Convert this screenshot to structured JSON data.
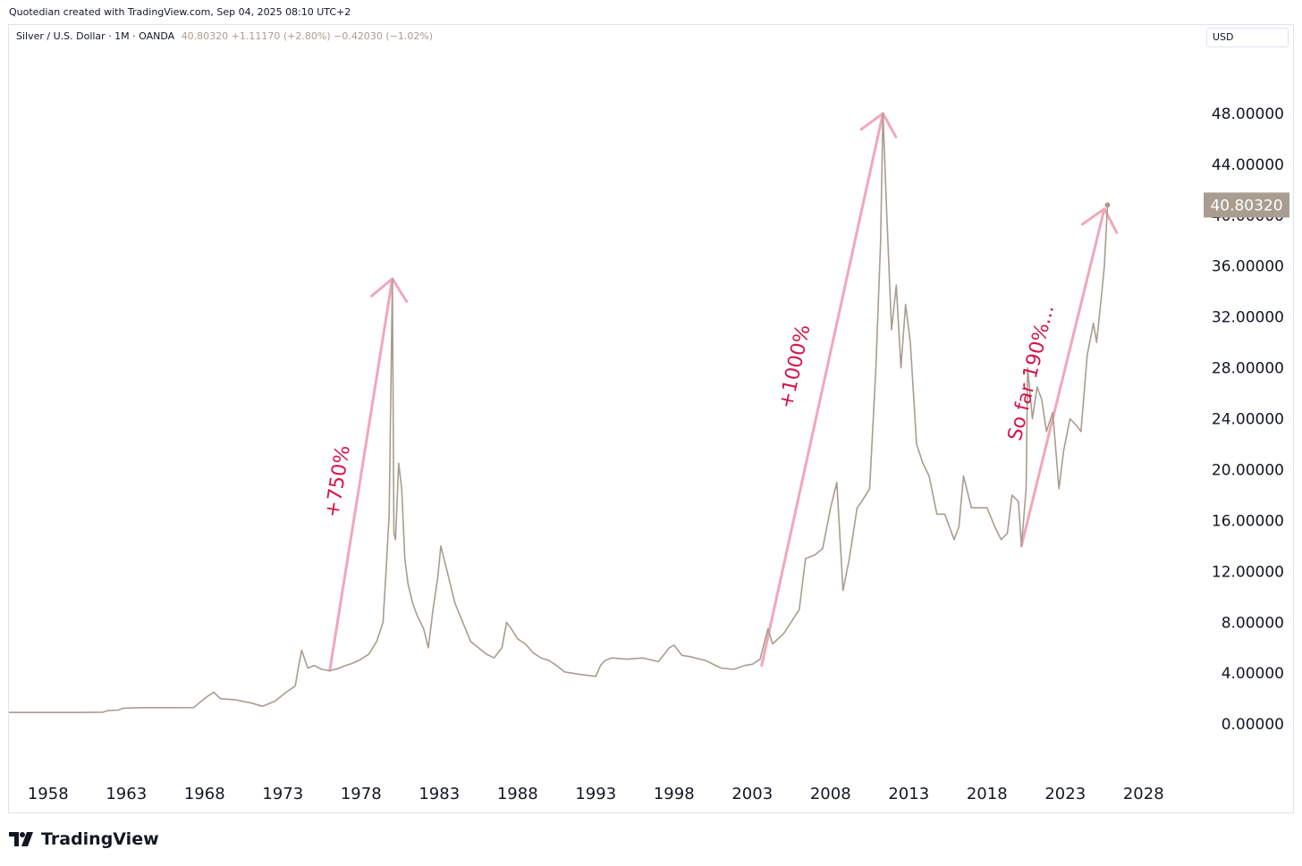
{
  "caption": "Quotedian created with TradingView.com, Sep 04, 2025 08:10 UTC+2",
  "legend": {
    "symbol": "Silver / U.S. Dollar · 1M · OANDA",
    "values": "40.80320  +1.11170 (+2.80%)  −0.42030 (−1.02%)"
  },
  "currency_button": "USD",
  "brand": "TradingView",
  "colors": {
    "line": "#a89d90",
    "arrows": "#f1a7ba",
    "annotation": "#d6154b",
    "price_label_bg": "#a89d90"
  },
  "chart_data": {
    "type": "line",
    "xlim": [
      1955.5,
      2031.5
    ],
    "ylim": [
      -3.5,
      52
    ],
    "x_ticks": [
      "1958",
      "1963",
      "1968",
      "1973",
      "1978",
      "1983",
      "1988",
      "1993",
      "1998",
      "2003",
      "2008",
      "2013",
      "2018",
      "2023",
      "2028"
    ],
    "y_ticks": [
      "48.00000",
      "44.00000",
      "40.00000",
      "36.00000",
      "32.00000",
      "28.00000",
      "24.00000",
      "20.00000",
      "16.00000",
      "12.00000",
      "8.00000",
      "4.00000",
      "0.00000"
    ],
    "last_price_label": "40.80320",
    "last_point": [
      2025.7,
      40.8
    ],
    "series": [
      {
        "points": [
          [
            1955.5,
            0.91
          ],
          [
            1960.0,
            0.91
          ],
          [
            1961.5,
            0.93
          ],
          [
            1961.8,
            1.05
          ],
          [
            1962.5,
            1.1
          ],
          [
            1962.8,
            1.25
          ],
          [
            1964.0,
            1.29
          ],
          [
            1966.0,
            1.29
          ],
          [
            1967.3,
            1.3
          ],
          [
            1967.6,
            1.6
          ],
          [
            1968.2,
            2.2
          ],
          [
            1968.6,
            2.5
          ],
          [
            1969.0,
            2.0
          ],
          [
            1970.0,
            1.9
          ],
          [
            1971.0,
            1.65
          ],
          [
            1971.7,
            1.4
          ],
          [
            1972.5,
            1.8
          ],
          [
            1973.2,
            2.5
          ],
          [
            1973.8,
            3.0
          ],
          [
            1974.0,
            4.5
          ],
          [
            1974.2,
            5.8
          ],
          [
            1974.6,
            4.4
          ],
          [
            1975.0,
            4.6
          ],
          [
            1975.5,
            4.3
          ],
          [
            1976.0,
            4.2
          ],
          [
            1976.5,
            4.35
          ],
          [
            1977.0,
            4.6
          ],
          [
            1977.5,
            4.8
          ],
          [
            1978.0,
            5.1
          ],
          [
            1978.5,
            5.5
          ],
          [
            1979.0,
            6.5
          ],
          [
            1979.4,
            8.0
          ],
          [
            1979.6,
            12.0
          ],
          [
            1979.8,
            16.5
          ],
          [
            1980.0,
            35.0
          ],
          [
            1980.1,
            15.0
          ],
          [
            1980.2,
            14.5
          ],
          [
            1980.4,
            20.5
          ],
          [
            1980.6,
            18.5
          ],
          [
            1980.8,
            13.0
          ],
          [
            1981.0,
            11.0
          ],
          [
            1981.3,
            9.5
          ],
          [
            1981.6,
            8.5
          ],
          [
            1982.0,
            7.5
          ],
          [
            1982.3,
            6.0
          ],
          [
            1982.6,
            9.0
          ],
          [
            1982.9,
            11.5
          ],
          [
            1983.1,
            14.0
          ],
          [
            1983.4,
            12.5
          ],
          [
            1983.7,
            11.0
          ],
          [
            1984.0,
            9.5
          ],
          [
            1984.5,
            8.0
          ],
          [
            1985.0,
            6.5
          ],
          [
            1985.5,
            6.0
          ],
          [
            1986.0,
            5.5
          ],
          [
            1986.5,
            5.2
          ],
          [
            1987.0,
            6.0
          ],
          [
            1987.3,
            8.0
          ],
          [
            1987.6,
            7.5
          ],
          [
            1988.0,
            6.7
          ],
          [
            1988.5,
            6.3
          ],
          [
            1989.0,
            5.6
          ],
          [
            1989.5,
            5.2
          ],
          [
            1990.0,
            5.0
          ],
          [
            1990.5,
            4.6
          ],
          [
            1991.0,
            4.1
          ],
          [
            1992.0,
            3.9
          ],
          [
            1993.0,
            3.75
          ],
          [
            1993.3,
            4.6
          ],
          [
            1993.6,
            5.0
          ],
          [
            1994.0,
            5.2
          ],
          [
            1995.0,
            5.1
          ],
          [
            1996.0,
            5.2
          ],
          [
            1997.0,
            4.9
          ],
          [
            1997.7,
            6.0
          ],
          [
            1998.0,
            6.2
          ],
          [
            1998.5,
            5.4
          ],
          [
            1999.0,
            5.3
          ],
          [
            2000.0,
            5.0
          ],
          [
            2001.0,
            4.4
          ],
          [
            2001.8,
            4.3
          ],
          [
            2002.5,
            4.6
          ],
          [
            2003.0,
            4.7
          ],
          [
            2003.5,
            5.1
          ],
          [
            2004.0,
            7.5
          ],
          [
            2004.3,
            6.3
          ],
          [
            2005.0,
            7.1
          ],
          [
            2006.0,
            9.0
          ],
          [
            2006.4,
            13.0
          ],
          [
            2007.0,
            13.3
          ],
          [
            2007.5,
            13.8
          ],
          [
            2008.0,
            17.0
          ],
          [
            2008.4,
            19.0
          ],
          [
            2008.8,
            10.5
          ],
          [
            2009.2,
            13.0
          ],
          [
            2009.7,
            17.0
          ],
          [
            2010.0,
            17.5
          ],
          [
            2010.5,
            18.5
          ],
          [
            2010.9,
            28.0
          ],
          [
            2011.2,
            38.0
          ],
          [
            2011.35,
            48.0
          ],
          [
            2011.6,
            40.0
          ],
          [
            2011.9,
            31.0
          ],
          [
            2012.2,
            34.5
          ],
          [
            2012.5,
            28.0
          ],
          [
            2012.8,
            33.0
          ],
          [
            2013.1,
            30.0
          ],
          [
            2013.5,
            22.0
          ],
          [
            2013.9,
            20.5
          ],
          [
            2014.3,
            19.5
          ],
          [
            2014.8,
            16.5
          ],
          [
            2015.3,
            16.5
          ],
          [
            2015.9,
            14.5
          ],
          [
            2016.2,
            15.5
          ],
          [
            2016.5,
            19.5
          ],
          [
            2017.0,
            17.0
          ],
          [
            2017.5,
            17.0
          ],
          [
            2018.0,
            17.0
          ],
          [
            2018.5,
            15.5
          ],
          [
            2018.9,
            14.5
          ],
          [
            2019.3,
            15.0
          ],
          [
            2019.6,
            18.0
          ],
          [
            2020.0,
            17.5
          ],
          [
            2020.2,
            14.0
          ],
          [
            2020.5,
            18.5
          ],
          [
            2020.6,
            28.0
          ],
          [
            2020.9,
            24.0
          ],
          [
            2021.2,
            26.5
          ],
          [
            2021.5,
            25.5
          ],
          [
            2021.8,
            23.0
          ],
          [
            2022.2,
            24.5
          ],
          [
            2022.6,
            18.5
          ],
          [
            2022.9,
            21.5
          ],
          [
            2023.3,
            24.0
          ],
          [
            2023.7,
            23.5
          ],
          [
            2024.0,
            23.0
          ],
          [
            2024.4,
            29.0
          ],
          [
            2024.8,
            31.5
          ],
          [
            2025.0,
            30.0
          ],
          [
            2025.3,
            33.5
          ],
          [
            2025.5,
            36.0
          ],
          [
            2025.7,
            40.8
          ]
        ]
      }
    ],
    "annotations": [
      {
        "text": "+750%",
        "at": [
          1976.9,
          19.0
        ]
      },
      {
        "text": "+1000%",
        "at": [
          2006.1,
          28.0
        ]
      },
      {
        "text": "So far 190%...",
        "at": [
          2021.2,
          27.5
        ]
      }
    ],
    "arrows": [
      {
        "from": [
          1976.0,
          4.2
        ],
        "to": [
          1980.0,
          35.0
        ]
      },
      {
        "from": [
          2003.6,
          4.6
        ],
        "to": [
          2011.35,
          48.0
        ]
      },
      {
        "from": [
          2020.2,
          14.0
        ],
        "to": [
          2025.5,
          40.5
        ]
      }
    ]
  }
}
